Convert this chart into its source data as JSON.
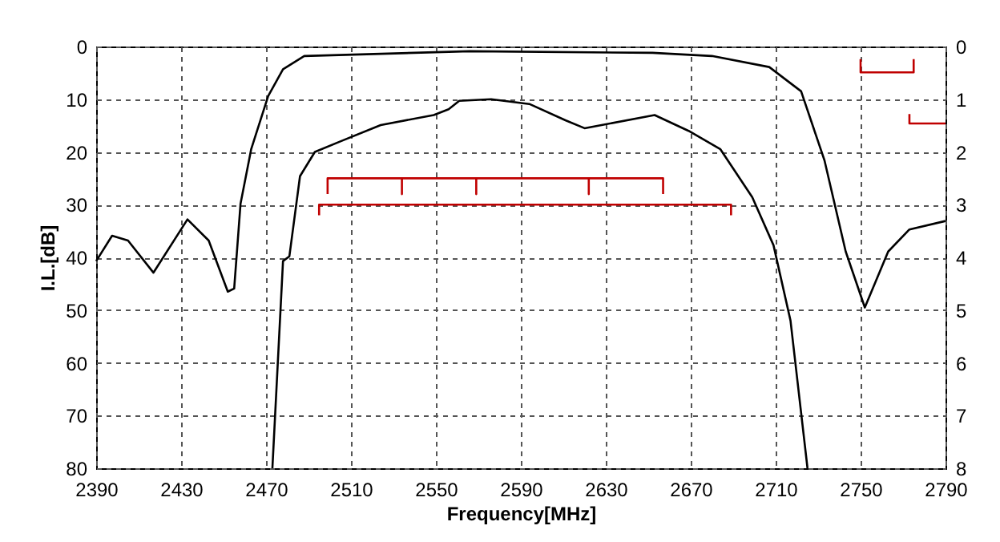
{
  "chart_data": {
    "type": "line",
    "xlabel": "Frequency[MHz]",
    "ylabel": "I.L.[dB]",
    "xlim": [
      2390,
      2790
    ],
    "xticks": [
      2390,
      2430,
      2470,
      2510,
      2550,
      2590,
      2630,
      2670,
      2710,
      2750,
      2790
    ],
    "ylim": [
      80,
      0
    ],
    "yticks": [
      0,
      10,
      20,
      30,
      40,
      50,
      60,
      70,
      80
    ],
    "y2lim": [
      8,
      0
    ],
    "y2ticks": [
      0,
      1,
      2,
      3,
      4,
      5,
      6,
      7,
      8
    ],
    "grid": true,
    "series": [
      {
        "color": "#000000",
        "x": [
          2390,
          2397.5,
          2405,
          2417,
          2433,
          2443,
          2452,
          2455,
          2458,
          2463,
          2471,
          2478,
          2488,
          2566,
          2652,
          2680,
          2707,
          2722,
          2733,
          2743,
          2752,
          2763,
          2773,
          2790
        ],
        "values": [
          40.7,
          35.9,
          36.8,
          42.9,
          32.8,
          36.8,
          46.5,
          45.9,
          29.8,
          19.5,
          9.4,
          4.3,
          1.8,
          0.9,
          1.2,
          1.8,
          3.9,
          8.5,
          21.6,
          38.9,
          49.5,
          38.9,
          34.7,
          33.1
        ]
      },
      {
        "axis": "y2",
        "color": "#000000",
        "x": [
          2473,
          2478,
          2481,
          2486,
          2493,
          2505,
          2524,
          2549,
          2556,
          2561,
          2576,
          2594,
          2611,
          2620,
          2628,
          2653,
          2669,
          2684,
          2699,
          2709,
          2717,
          2725
        ],
        "values": [
          8,
          4.07,
          3.98,
          2.46,
          2.0,
          1.8,
          1.49,
          1.3,
          1.19,
          1.03,
          1.0,
          1.09,
          1.4,
          1.55,
          1.49,
          1.3,
          1.6,
          1.95,
          2.86,
          3.77,
          5.2,
          8
        ]
      },
      {
        "axis": "y2",
        "color": "#c00000",
        "x": [
          2499,
          2499,
          2534,
          2534,
          2534,
          2569,
          2569,
          2569,
          2622,
          2622,
          2622,
          2657,
          2657
        ],
        "values": [
          2.8,
          2.5,
          2.5,
          2.8,
          2.5,
          2.5,
          2.8,
          2.5,
          2.5,
          2.8,
          2.5,
          2.5,
          2.8
        ]
      },
      {
        "axis": "y2",
        "color": "#c00000",
        "x": [
          2495,
          2495,
          2689,
          2689
        ],
        "values": [
          3.2,
          3.0,
          3.0,
          3.2
        ]
      },
      {
        "axis": "y2",
        "color": "#c00000",
        "x": [
          2750,
          2750,
          2775,
          2775
        ],
        "values": [
          0.24,
          0.49,
          0.49,
          0.24
        ]
      },
      {
        "axis": "y2",
        "color": "#c00000",
        "x": [
          2773,
          2773,
          2790
        ],
        "values": [
          1.28,
          1.46,
          1.46
        ]
      }
    ]
  }
}
